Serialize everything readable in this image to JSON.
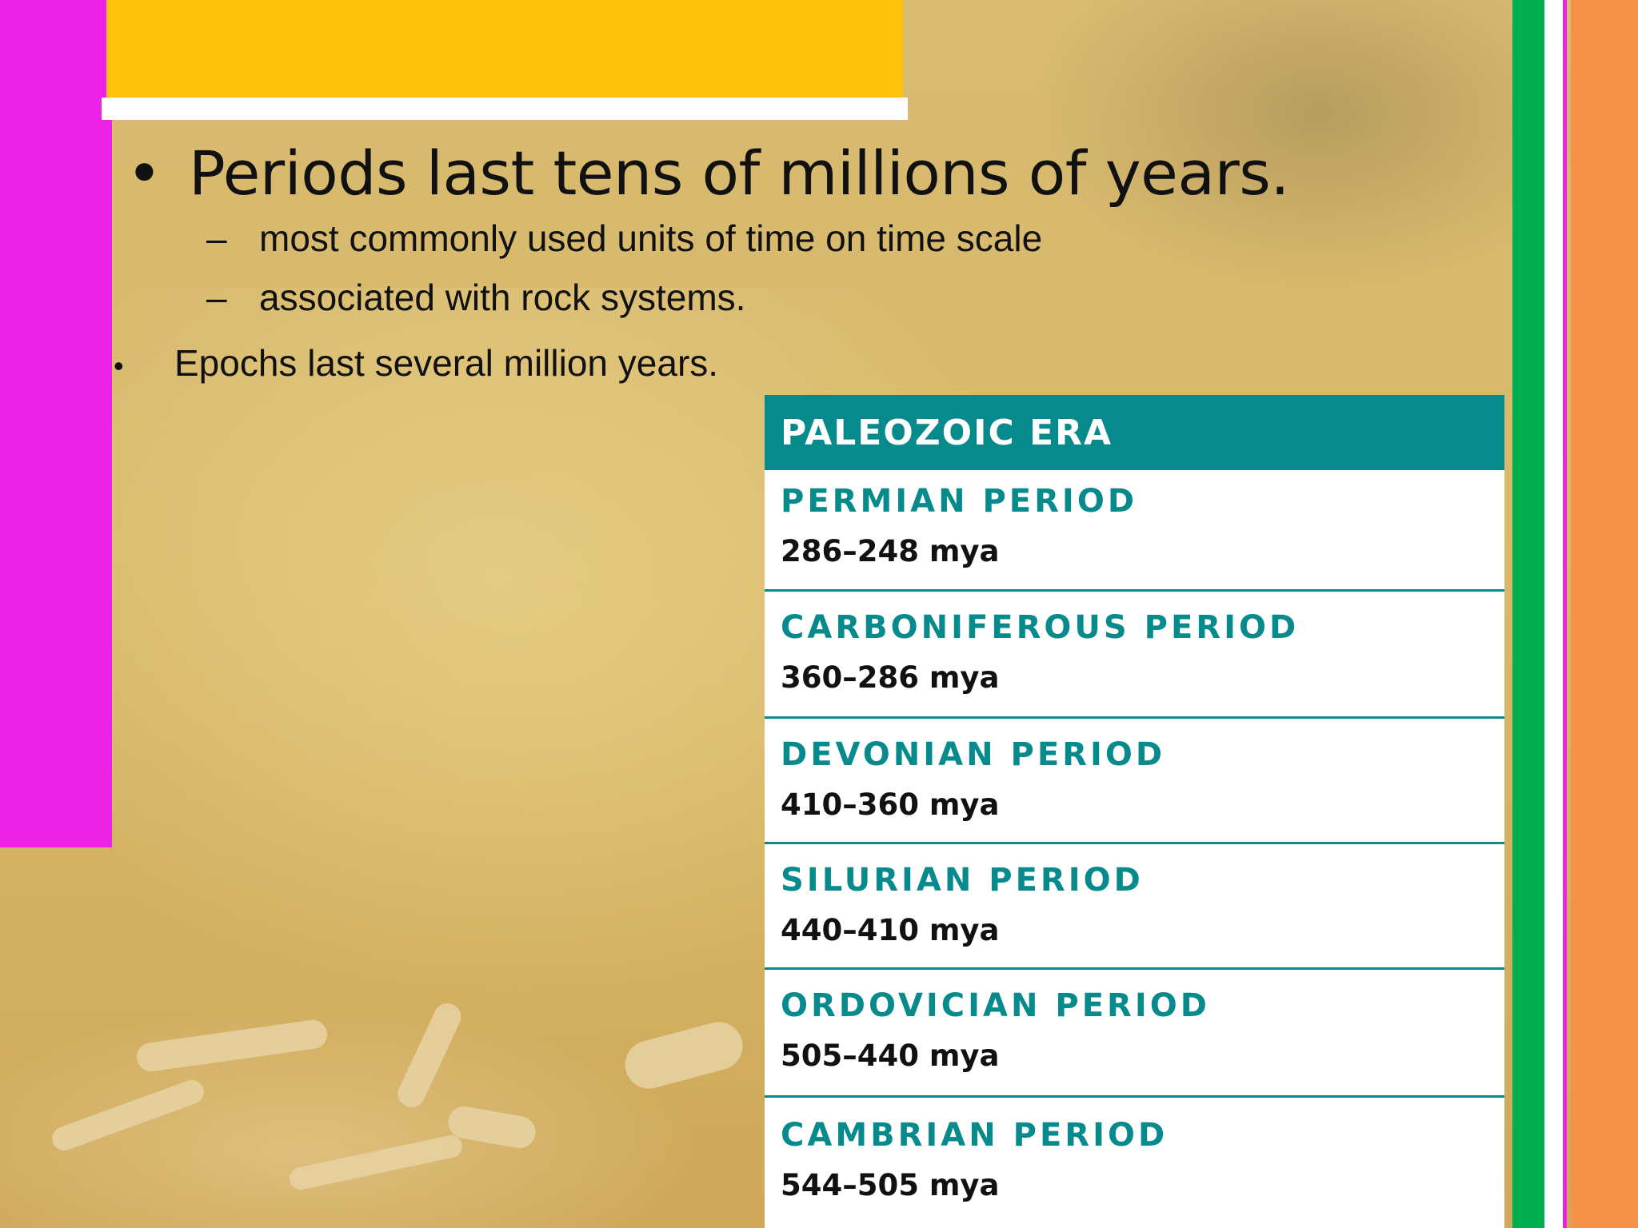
{
  "slide": {
    "main_bullet": "Periods last tens of millions of years.",
    "sub_bullets": [
      "most commonly used units of time on time scale",
      "associated with rock systems."
    ],
    "bullet_dot": "•",
    "sub_dash": "–",
    "second_bullet": "Epochs last several million years."
  },
  "era_table": {
    "header": "PALEOZOIC ERA",
    "periods": [
      {
        "name": "PERMIAN PERIOD",
        "range": "286–248 mya"
      },
      {
        "name": "CARBONIFEROUS PERIOD",
        "range": "360–286 mya"
      },
      {
        "name": "DEVONIAN PERIOD",
        "range": "410–360 mya"
      },
      {
        "name": "SILURIAN PERIOD",
        "range": "440–410 mya"
      },
      {
        "name": "ORDOVICIAN PERIOD",
        "range": "505–440 mya"
      },
      {
        "name": "CAMBRIAN PERIOD",
        "range": "544–505 mya"
      }
    ]
  },
  "colors": {
    "magenta_bar": "#ee22e6",
    "gold_bar": "#fec20d",
    "green_stripe": "#00b050",
    "orange_stripe": "#f6914a",
    "teal": "#078a8c",
    "background": "#d8ba6c"
  }
}
